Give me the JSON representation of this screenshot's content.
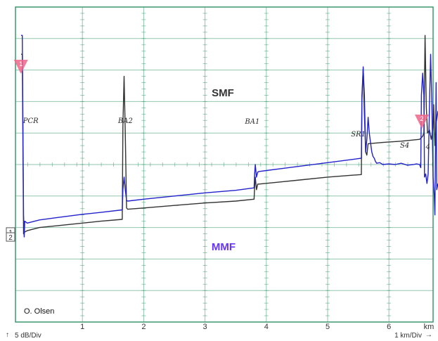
{
  "chart_data": {
    "type": "line",
    "title": "",
    "xlabel": "",
    "ylabel": "",
    "x_unit": "km",
    "xlim": [
      0,
      6.8
    ],
    "x_ticks": [
      "1",
      "2",
      "3",
      "4",
      "5",
      "6"
    ],
    "grid": true,
    "y_scale_text": "5 dB/Div",
    "x_scale_text": "1 km/Div",
    "credit": "O. Olsen",
    "colors": {
      "grid": "#3a9a6c",
      "smf": "#333333",
      "mmf": "#2222cc",
      "mmf_label": "#6633ff",
      "marker": "#ee6688"
    },
    "series": [
      {
        "name": "SMF",
        "channel": "1",
        "x": [
          0.0,
          0.02,
          0.04,
          0.06,
          0.1,
          0.3,
          0.6,
          1.0,
          1.3,
          1.65,
          1.66,
          1.68,
          1.7,
          1.72,
          1.74,
          2.0,
          2.5,
          3.0,
          3.5,
          3.8,
          3.81,
          3.82,
          3.84,
          3.86,
          3.88,
          4.2,
          4.6,
          5.0,
          5.4,
          5.55,
          5.56,
          5.58,
          5.6,
          5.62,
          5.64,
          5.66,
          5.9,
          6.2,
          6.4,
          6.5,
          6.55,
          6.57,
          6.59,
          6.61,
          6.63,
          6.66,
          6.69,
          6.72,
          6.73,
          6.75,
          6.77,
          6.8
        ],
        "y": [
          37.5,
          37.5,
          9.0,
          9.3,
          9.5,
          10.0,
          10.3,
          10.7,
          11.0,
          11.3,
          26.0,
          34.0,
          25.0,
          13.1,
          12.9,
          13.1,
          13.5,
          13.9,
          14.2,
          14.5,
          16.5,
          18.0,
          16.0,
          16.9,
          16.9,
          17.2,
          17.6,
          18.0,
          18.3,
          18.4,
          31.0,
          35.2,
          31.0,
          22.0,
          21.5,
          23.3,
          23.5,
          23.7,
          23.9,
          24.0,
          24.5,
          25.0,
          40.5,
          29.0,
          25.0,
          25.5,
          24.0,
          25.8,
          29.5,
          23.0,
          26.5,
          28.5
        ]
      },
      {
        "name": "MMF",
        "channel": "2",
        "x": [
          0.0,
          0.02,
          0.04,
          0.05,
          0.06,
          0.1,
          0.3,
          0.6,
          1.0,
          1.3,
          1.65,
          1.66,
          1.68,
          1.7,
          1.72,
          1.74,
          2.0,
          2.5,
          3.0,
          3.5,
          3.8,
          3.81,
          3.82,
          3.84,
          3.86,
          3.88,
          4.2,
          4.6,
          5.0,
          5.4,
          5.55,
          5.56,
          5.58,
          5.6,
          5.62,
          5.64,
          5.66,
          5.68,
          5.7,
          5.72,
          5.74,
          5.76,
          5.78,
          5.8,
          5.85,
          5.9,
          6.0,
          6.1,
          6.2,
          6.3,
          6.4,
          6.45,
          6.5,
          6.52,
          6.53,
          6.55,
          6.57,
          6.58,
          6.6,
          6.62,
          6.64,
          6.66,
          6.68,
          6.7,
          6.72,
          6.74,
          6.75,
          6.77,
          6.78,
          6.8
        ],
        "y": [
          40.5,
          40.5,
          12.0,
          8.5,
          11.0,
          10.7,
          11.2,
          11.6,
          12.1,
          12.4,
          12.8,
          16.0,
          18.0,
          16.0,
          14.3,
          14.2,
          14.5,
          15.0,
          15.5,
          15.9,
          16.3,
          18.5,
          20.0,
          18.0,
          18.8,
          18.9,
          19.3,
          19.8,
          20.3,
          20.8,
          21.0,
          30.0,
          35.5,
          28.0,
          22.0,
          24.0,
          27.5,
          25.0,
          23.5,
          22.0,
          21.3,
          21.0,
          20.5,
          20.2,
          20.3,
          20.0,
          20.1,
          20.0,
          20.2,
          19.9,
          20.0,
          20.1,
          20.0,
          19.5,
          31.0,
          34.5,
          31.0,
          18.0,
          18.5,
          17.0,
          18.5,
          29.0,
          37.5,
          30.0,
          18.0,
          15.0,
          12.0,
          33.0,
          16.0,
          17.0
        ]
      }
    ],
    "events": [
      {
        "label": "PCR",
        "x": 0.1
      },
      {
        "label": "BA2",
        "x": 1.65
      },
      {
        "label": "BA1",
        "x": 3.72
      },
      {
        "label": "SR1",
        "x": 5.45
      },
      {
        "label": "S4",
        "x": 6.25
      },
      {
        "label": "4",
        "x": 6.67
      }
    ],
    "markers": [
      {
        "label": "1",
        "x": 0.02
      },
      {
        "label": "2",
        "x": 6.56
      }
    ]
  }
}
